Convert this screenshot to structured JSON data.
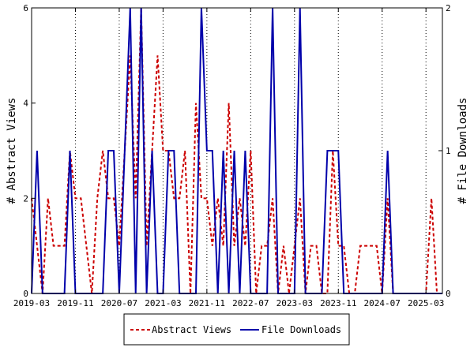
{
  "chart_data": {
    "type": "line",
    "title": "",
    "xlabel": "",
    "ylabel_left": "# Abstract Views",
    "ylabel_right": "# File Downloads",
    "x_tick_labels": [
      "2019-03",
      "2019-11",
      "2020-07",
      "2021-03",
      "2021-11",
      "2022-07",
      "2023-03",
      "2023-11",
      "2024-07",
      "2025-03"
    ],
    "y_left_ticks": [
      "0",
      "2",
      "4",
      "6"
    ],
    "y_right_ticks": [
      "0",
      "1",
      "2"
    ],
    "ylim_left": [
      0,
      6
    ],
    "ylim_right": [
      0,
      2
    ],
    "grid": "vertical",
    "legend_position": "bottom",
    "series": [
      {
        "name": "Abstract Views",
        "axis": "left",
        "color": "#cc0000",
        "style": "dashed",
        "values": [
          2,
          1,
          0,
          2,
          1,
          1,
          1,
          3,
          2,
          2,
          1,
          0,
          2,
          3,
          2,
          2,
          1,
          3,
          5,
          2,
          6,
          1,
          3,
          5,
          3,
          3,
          2,
          2,
          3,
          0,
          4,
          2,
          2,
          1,
          2,
          1,
          4,
          1,
          2,
          1,
          3,
          0,
          1,
          1,
          2,
          0,
          1,
          0,
          1,
          2,
          0,
          1,
          1,
          0,
          0,
          3,
          1,
          1,
          0,
          0,
          1,
          1,
          1,
          1,
          0,
          2,
          0,
          0,
          0,
          0,
          0,
          0,
          0,
          2,
          0,
          0
        ]
      },
      {
        "name": "File Downloads",
        "axis": "right",
        "color": "#0000aa",
        "style": "solid",
        "values": [
          0,
          1,
          0,
          0,
          0,
          0,
          0,
          1,
          0,
          0,
          0,
          0,
          0,
          0,
          1,
          1,
          0,
          1,
          2,
          0,
          2,
          0,
          1,
          0,
          0,
          1,
          1,
          0,
          0,
          0,
          0,
          2,
          1,
          1,
          0,
          1,
          0,
          1,
          0,
          1,
          0,
          0,
          0,
          0,
          2,
          0,
          0,
          0,
          0,
          2,
          0,
          0,
          0,
          0,
          1,
          1,
          1,
          0,
          0,
          0,
          0,
          0,
          0,
          0,
          0,
          1,
          0,
          0,
          0,
          0,
          0,
          0,
          0,
          0,
          0,
          0
        ]
      }
    ]
  },
  "colors": {
    "abstract_views": "#cc0000",
    "file_downloads": "#0000aa",
    "grid": "#000000"
  }
}
